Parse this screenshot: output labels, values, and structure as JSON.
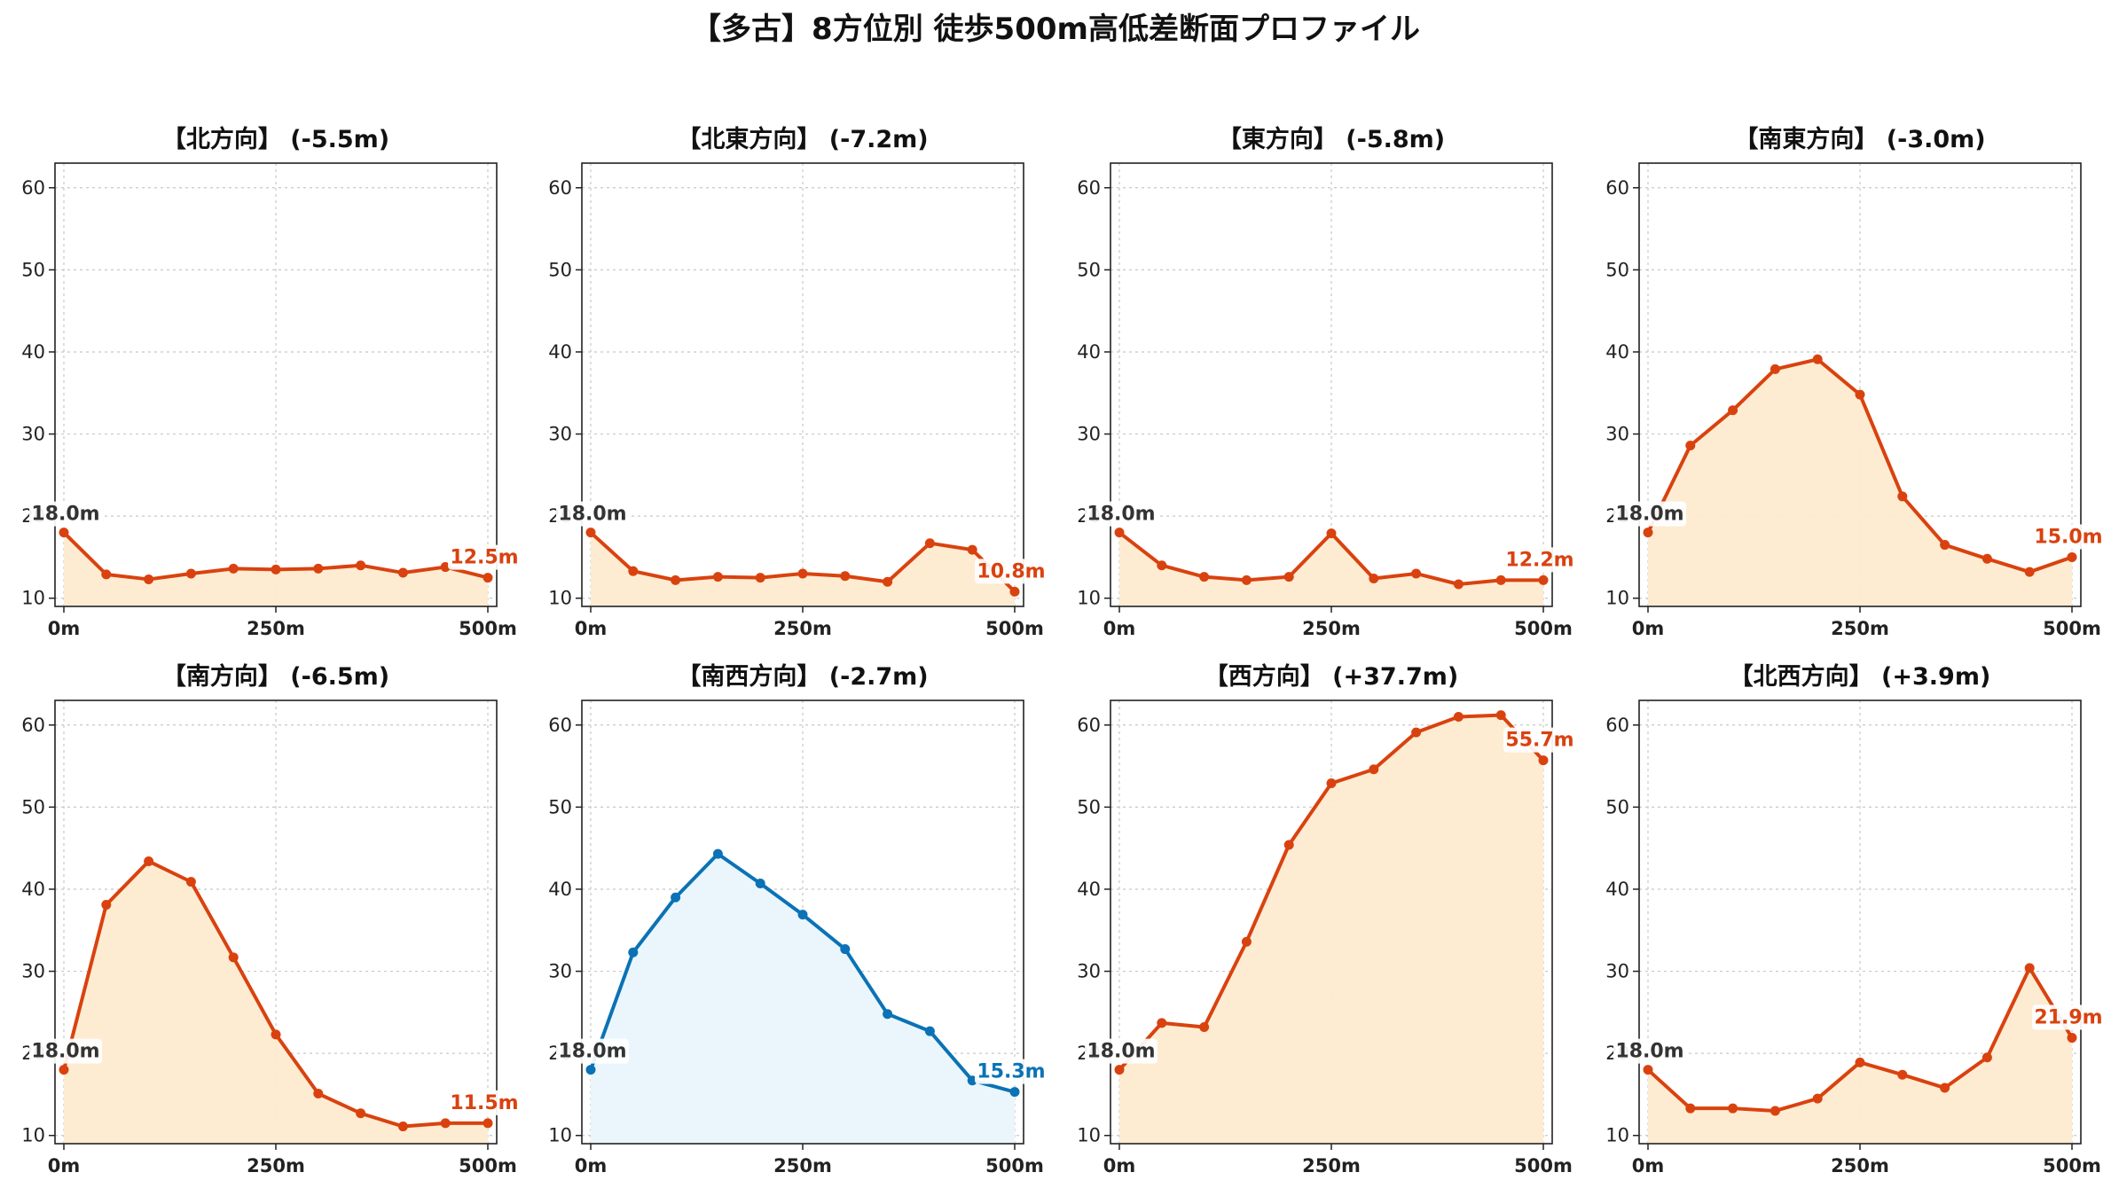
{
  "title": "【多古】8方位別 徒歩500m高低差断面プロファイル",
  "colors": {
    "up": "#d9420f",
    "up_fill": "#fdebd0",
    "down": "#0b72b5",
    "down_fill": "#e9f6fb",
    "start_label": "#333333"
  },
  "chart_data": [
    {
      "type": "area",
      "title": "【北方向】 (-5.5m)",
      "x": [
        0,
        50,
        100,
        150,
        200,
        250,
        300,
        350,
        400,
        450,
        500
      ],
      "values": [
        18.0,
        12.9,
        12.3,
        13.0,
        13.6,
        13.5,
        13.6,
        14.0,
        13.1,
        13.8,
        12.5
      ],
      "xticks": [
        "0m",
        "250m",
        "500m"
      ],
      "yticks": [
        10,
        20,
        30,
        40,
        50,
        60
      ],
      "ylim": [
        9,
        63
      ],
      "start_label": "18.0m",
      "end_label": "12.5m",
      "highlight": false,
      "grid": true
    },
    {
      "type": "area",
      "title": "【北東方向】 (-7.2m)",
      "x": [
        0,
        50,
        100,
        150,
        200,
        250,
        300,
        350,
        400,
        450,
        500
      ],
      "values": [
        18.0,
        13.3,
        12.2,
        12.6,
        12.5,
        13.0,
        12.7,
        12.0,
        16.7,
        15.9,
        10.8
      ],
      "xticks": [
        "0m",
        "250m",
        "500m"
      ],
      "yticks": [
        10,
        20,
        30,
        40,
        50,
        60
      ],
      "ylim": [
        9,
        63
      ],
      "start_label": "18.0m",
      "end_label": "10.8m",
      "highlight": false,
      "grid": true
    },
    {
      "type": "area",
      "title": "【東方向】 (-5.8m)",
      "x": [
        0,
        50,
        100,
        150,
        200,
        250,
        300,
        350,
        400,
        450,
        500
      ],
      "values": [
        18.0,
        14.0,
        12.6,
        12.2,
        12.6,
        17.9,
        12.4,
        13.0,
        11.7,
        12.2,
        12.2
      ],
      "xticks": [
        "0m",
        "250m",
        "500m"
      ],
      "yticks": [
        10,
        20,
        30,
        40,
        50,
        60
      ],
      "ylim": [
        9,
        63
      ],
      "start_label": "18.0m",
      "end_label": "12.2m",
      "highlight": false,
      "grid": true
    },
    {
      "type": "area",
      "title": "【南東方向】 (-3.0m)",
      "x": [
        0,
        50,
        100,
        150,
        200,
        250,
        300,
        350,
        400,
        450,
        500
      ],
      "values": [
        18.0,
        28.6,
        32.9,
        37.9,
        39.1,
        34.8,
        22.4,
        16.5,
        14.8,
        13.2,
        15.0
      ],
      "xticks": [
        "0m",
        "250m",
        "500m"
      ],
      "yticks": [
        10,
        20,
        30,
        40,
        50,
        60
      ],
      "ylim": [
        9,
        63
      ],
      "start_label": "18.0m",
      "end_label": "15.0m",
      "highlight": false,
      "grid": true
    },
    {
      "type": "area",
      "title": "【南方向】 (-6.5m)",
      "x": [
        0,
        50,
        100,
        150,
        200,
        250,
        300,
        350,
        400,
        450,
        500
      ],
      "values": [
        18.0,
        38.1,
        43.4,
        40.9,
        31.7,
        22.3,
        15.1,
        12.7,
        11.1,
        11.5,
        11.5
      ],
      "xticks": [
        "0m",
        "250m",
        "500m"
      ],
      "yticks": [
        10,
        20,
        30,
        40,
        50,
        60
      ],
      "ylim": [
        9,
        63
      ],
      "start_label": "18.0m",
      "end_label": "11.5m",
      "highlight": false,
      "grid": true
    },
    {
      "type": "area",
      "title": "【南西方向】 (-2.7m)",
      "x": [
        0,
        50,
        100,
        150,
        200,
        250,
        300,
        350,
        400,
        450,
        500
      ],
      "values": [
        18.0,
        32.3,
        39.0,
        44.3,
        40.7,
        36.9,
        32.7,
        24.8,
        22.7,
        16.7,
        15.3
      ],
      "xticks": [
        "0m",
        "250m",
        "500m"
      ],
      "yticks": [
        10,
        20,
        30,
        40,
        50,
        60
      ],
      "ylim": [
        9,
        63
      ],
      "start_label": "18.0m",
      "end_label": "15.3m",
      "highlight": true,
      "grid": true
    },
    {
      "type": "area",
      "title": "【西方向】 (+37.7m)",
      "x": [
        0,
        50,
        100,
        150,
        200,
        250,
        300,
        350,
        400,
        450,
        500
      ],
      "values": [
        18.0,
        23.7,
        23.2,
        33.6,
        45.4,
        52.9,
        54.6,
        59.1,
        61.0,
        61.2,
        55.7
      ],
      "xticks": [
        "0m",
        "250m",
        "500m"
      ],
      "yticks": [
        10,
        20,
        30,
        40,
        50,
        60
      ],
      "ylim": [
        9,
        63
      ],
      "start_label": "18.0m",
      "end_label": "55.7m",
      "highlight": false,
      "grid": true
    },
    {
      "type": "area",
      "title": "【北西方向】 (+3.9m)",
      "x": [
        0,
        50,
        100,
        150,
        200,
        250,
        300,
        350,
        400,
        450,
        500
      ],
      "values": [
        18.0,
        13.3,
        13.3,
        13.0,
        14.5,
        18.9,
        17.4,
        15.8,
        19.5,
        30.4,
        21.9
      ],
      "xticks": [
        "0m",
        "250m",
        "500m"
      ],
      "yticks": [
        10,
        20,
        30,
        40,
        50,
        60
      ],
      "ylim": [
        9,
        63
      ],
      "start_label": "18.0m",
      "end_label": "21.9m",
      "highlight": false,
      "grid": true
    }
  ]
}
